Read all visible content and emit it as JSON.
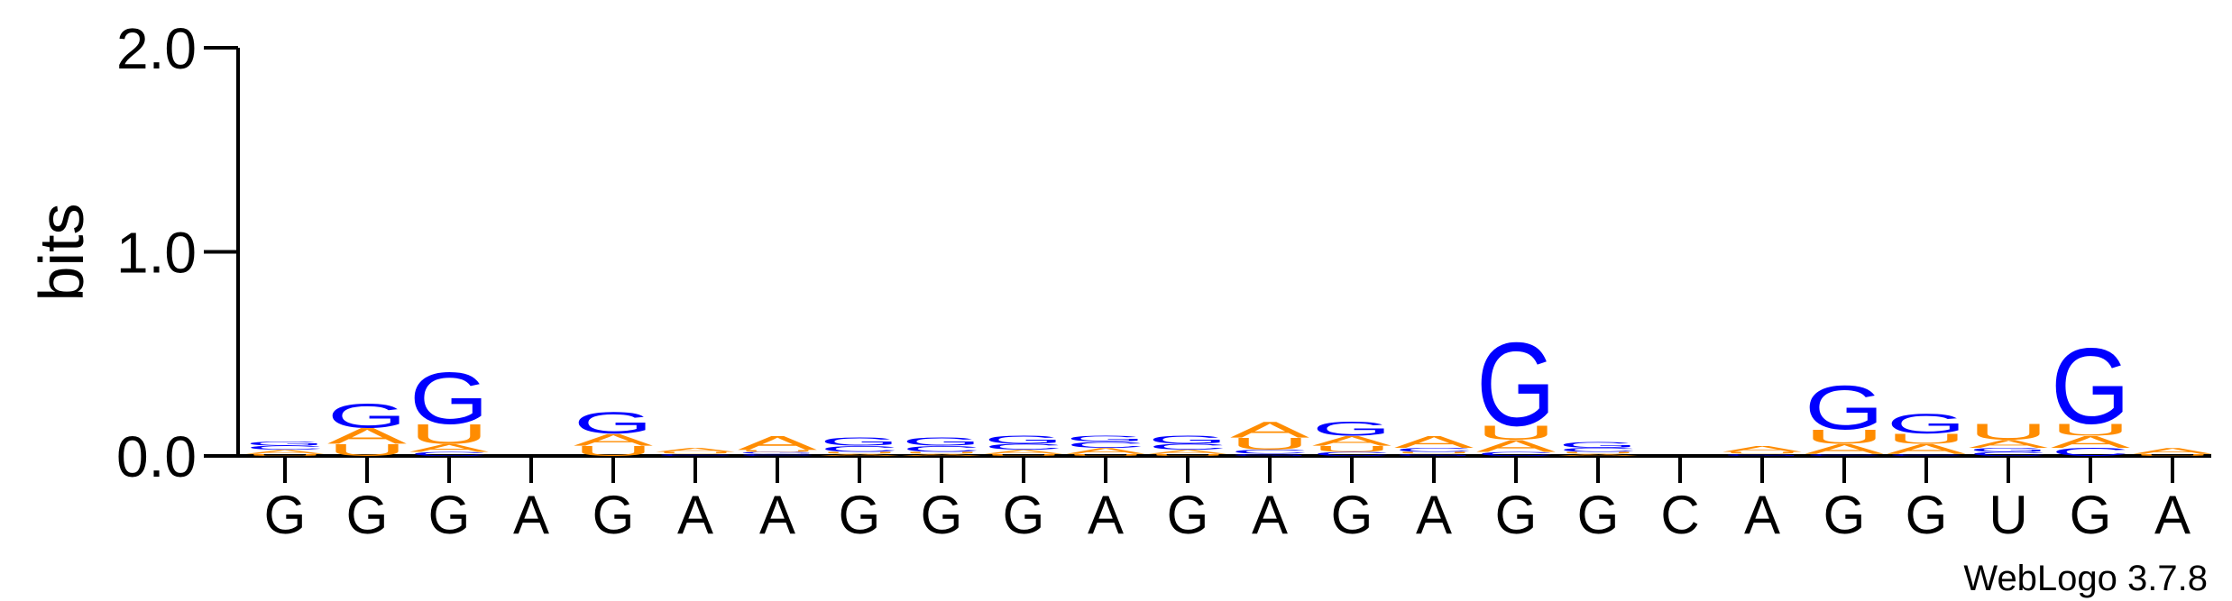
{
  "chart_data": {
    "type": "logo",
    "y_label": "bits",
    "credit": "WebLogo 3.7.8",
    "categories": [
      "G",
      "G",
      "G",
      "A",
      "G",
      "A",
      "A",
      "G",
      "G",
      "G",
      "A",
      "G",
      "A",
      "G",
      "A",
      "G",
      "G",
      "C",
      "A",
      "G",
      "G",
      "U",
      "G",
      "A"
    ],
    "series": [
      {
        "name": "A",
        "color": "#ff8c00",
        "values": [
          0.02,
          0.08,
          0.04,
          0,
          0.06,
          0.02,
          0.07,
          0.01,
          0.01,
          0.02,
          0.03,
          0.02,
          0.08,
          0.05,
          0.06,
          0.06,
          0.01,
          0,
          0.03,
          0.05,
          0.05,
          0.04,
          0.06,
          0.03
        ]
      },
      {
        "name": "C",
        "color": "#0000ff",
        "values": [
          0.02,
          0,
          0.02,
          0,
          0,
          0.01,
          0.01,
          0.03,
          0.03,
          0.03,
          0.03,
          0.03,
          0.02,
          0.02,
          0.02,
          0.02,
          0.02,
          0,
          0,
          0.01,
          0.01,
          0.02,
          0.04,
          0
        ]
      },
      {
        "name": "G",
        "color": "#0000ff",
        "values": [
          0.02,
          0.12,
          0.26,
          0,
          0.11,
          0,
          0.01,
          0.04,
          0.04,
          0.04,
          0.03,
          0.04,
          0.01,
          0.07,
          0.01,
          0.42,
          0.03,
          0,
          0.01,
          0.22,
          0.1,
          0.02,
          0.38,
          0
        ]
      },
      {
        "name": "U",
        "color": "#ff8c00",
        "values": [
          0.01,
          0.06,
          0.1,
          0,
          0.05,
          0.01,
          0.01,
          0.01,
          0.01,
          0.01,
          0.01,
          0.01,
          0.06,
          0.03,
          0.01,
          0.07,
          0.01,
          0,
          0.01,
          0.07,
          0.05,
          0.08,
          0.06,
          0.01
        ]
      }
    ],
    "ylim": [
      0,
      2
    ],
    "yticks": [
      {
        "value": 0,
        "label": "0.0"
      },
      {
        "value": 1,
        "label": "1.0"
      },
      {
        "value": 2,
        "label": "2.0"
      }
    ]
  }
}
